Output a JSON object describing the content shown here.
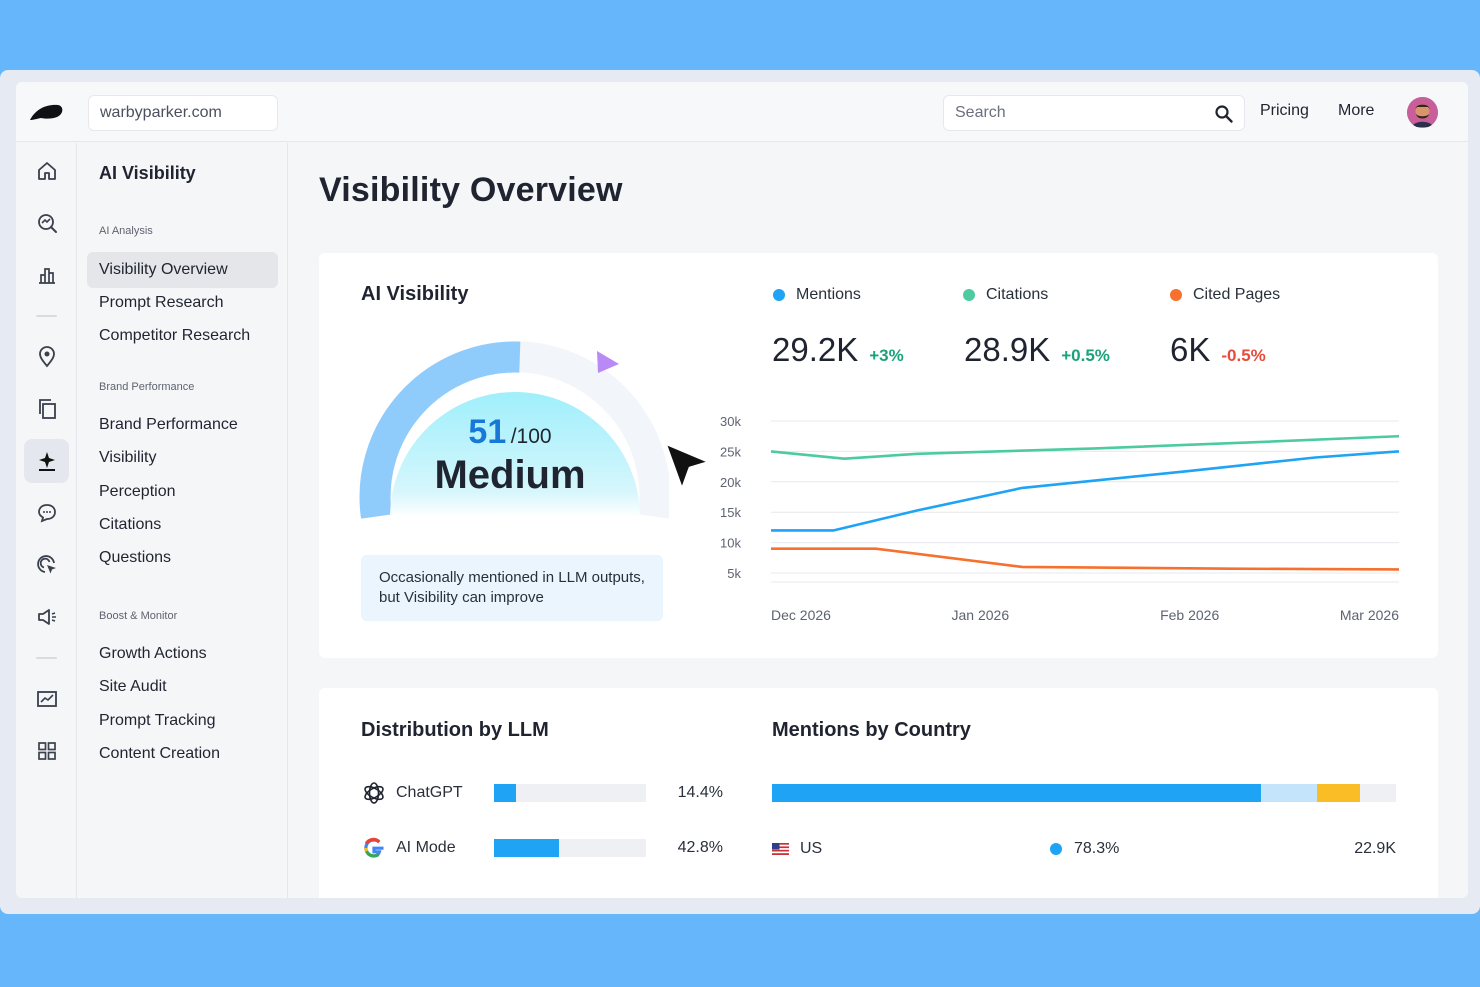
{
  "header": {
    "domain_value": "warbyparker.com",
    "search_placeholder": "Search",
    "nav": [
      "Pricing",
      "More"
    ]
  },
  "rail": {
    "icons": [
      "home-icon",
      "search-trend-icon",
      "bar-chart-icon",
      "location-pin-icon",
      "pages-icon",
      "ai-visibility-icon",
      "chat-bubble-icon",
      "target-cursor-icon",
      "megaphone-icon",
      "line-chart-icon",
      "apps-grid-icon"
    ],
    "active": "ai-visibility-icon"
  },
  "sidebar": {
    "title": "AI Visibility",
    "groups": [
      {
        "label": "AI Analysis",
        "items": [
          "Visibility Overview",
          "Prompt Research",
          "Competitor Research"
        ]
      },
      {
        "label": "Brand Performance",
        "items": [
          "Brand Performance",
          "Visibility",
          "Perception",
          "Citations",
          "Questions"
        ]
      },
      {
        "label": "Boost & Monitor",
        "items": [
          "Growth Actions",
          "Site Audit",
          "Prompt Tracking",
          "Content Creation"
        ]
      }
    ],
    "active_item": "Visibility Overview"
  },
  "main": {
    "title": "Visibility Overview",
    "visibility": {
      "title": "AI Visibility",
      "score": "51",
      "score_max": "/100",
      "score_value": 51,
      "level": "Medium",
      "note": "Occasionally mentioned in LLM outputs, but Visibility can improve"
    },
    "metrics": [
      {
        "name": "Mentions",
        "value": "29.2K",
        "change": "+3%",
        "color": "#1fa3f5",
        "change_color": "#1aa37a"
      },
      {
        "name": "Citations",
        "value": "28.9K",
        "change": "+0.5%",
        "color": "#4dcba0",
        "change_color": "#1aa37a"
      },
      {
        "name": "Cited Pages",
        "value": "6K",
        "change": "-0.5%",
        "color": "#f6702e",
        "change_color": "#e84b3c"
      }
    ],
    "distribution": {
      "title": "Distribution by LLM",
      "rows": [
        {
          "name": "ChatGPT",
          "pct": "14.4%",
          "value": 14.4,
          "icon": "openai-icon"
        },
        {
          "name": "AI Mode",
          "pct": "42.8%",
          "value": 42.8,
          "icon": "google-icon"
        }
      ]
    },
    "country": {
      "title": "Mentions by Country",
      "segments": [
        {
          "value": 78.3,
          "color": "#1fa3f5"
        },
        {
          "value": 9,
          "color": "#c3e4fb"
        },
        {
          "value": 7,
          "color": "#fbbd25"
        }
      ],
      "rows": [
        {
          "name": "US",
          "pct": "78.3%",
          "value": "22.9K",
          "color": "#1fa3f5"
        }
      ]
    }
  },
  "chart_data": {
    "type": "line",
    "x": [
      "Dec 2026",
      "Jan 2026",
      "Feb 2026",
      "Mar 2026"
    ],
    "y_ticks": [
      "30k",
      "25k",
      "20k",
      "15k",
      "10k",
      "5k"
    ],
    "ylim": [
      5000,
      30000
    ],
    "grid": true,
    "series": [
      {
        "name": "Citations",
        "color": "#4dcba0",
        "points": [
          [
            0,
            25000
          ],
          [
            0.35,
            23800
          ],
          [
            0.7,
            24600
          ],
          [
            1.55,
            25500
          ],
          [
            2.3,
            26500
          ],
          [
            3,
            27500
          ]
        ]
      },
      {
        "name": "Mentions",
        "color": "#1fa3f5",
        "points": [
          [
            0,
            12000
          ],
          [
            0.3,
            12000
          ],
          [
            0.7,
            15300
          ],
          [
            1.2,
            19000
          ],
          [
            2.0,
            21800
          ],
          [
            2.6,
            24000
          ],
          [
            3,
            25000
          ]
        ]
      },
      {
        "name": "Cited Pages",
        "color": "#f6702e",
        "points": [
          [
            0,
            9000
          ],
          [
            0.5,
            9000
          ],
          [
            1.2,
            6000
          ],
          [
            2.2,
            5700
          ],
          [
            3,
            5600
          ]
        ]
      }
    ]
  }
}
